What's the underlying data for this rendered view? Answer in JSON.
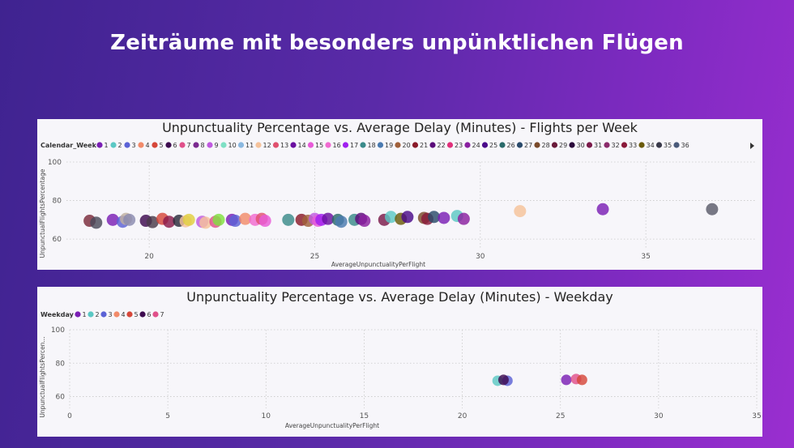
{
  "page": {
    "title": "Zeiträume mit besonders unpünktlichen Flügen"
  },
  "chart_data": [
    {
      "id": "week",
      "type": "scatter",
      "title": "Unpunctuality Percentage vs. Average Delay (Minutes) - Flights per Week",
      "legend_title": "Calendar_Week",
      "legend_more_icon": "chevron-right-icon",
      "xlabel": "AverageUnpunctualityPerFlight",
      "ylabel": "UnpunctualFlightsPercentage",
      "xlim": [
        17.5,
        38.3
      ],
      "ylim": [
        55,
        100
      ],
      "xticks": [
        20,
        25,
        30,
        35
      ],
      "yticks": [
        60,
        80,
        100
      ],
      "legend": [
        {
          "label": "1",
          "color": "#7a1fb4"
        },
        {
          "label": "2",
          "color": "#5bc8c4"
        },
        {
          "label": "3",
          "color": "#5b62d6"
        },
        {
          "label": "4",
          "color": "#f28b6a"
        },
        {
          "label": "5",
          "color": "#d6473a"
        },
        {
          "label": "6",
          "color": "#3d0a4f"
        },
        {
          "label": "7",
          "color": "#e0508a"
        },
        {
          "label": "8",
          "color": "#7b2a8f"
        },
        {
          "label": "9",
          "color": "#c05ae0"
        },
        {
          "label": "10",
          "color": "#7ee0c4"
        },
        {
          "label": "11",
          "color": "#8ab8e0"
        },
        {
          "label": "12",
          "color": "#f5c29a"
        },
        {
          "label": "13",
          "color": "#e0506e"
        },
        {
          "label": "14",
          "color": "#6a0fa0"
        },
        {
          "label": "15",
          "color": "#e85ad8"
        },
        {
          "label": "16",
          "color": "#f06ad0"
        },
        {
          "label": "17",
          "color": "#a020f0"
        },
        {
          "label": "18",
          "color": "#3a8a8a"
        },
        {
          "label": "19",
          "color": "#4a7ab0"
        },
        {
          "label": "20",
          "color": "#a0603a"
        },
        {
          "label": "21",
          "color": "#8a1a2a"
        },
        {
          "label": "22",
          "color": "#5a0a7a"
        },
        {
          "label": "23",
          "color": "#e0307a"
        },
        {
          "label": "24",
          "color": "#8a20a0"
        },
        {
          "label": "25",
          "color": "#4a0a8a"
        },
        {
          "label": "26",
          "color": "#2a6a6a"
        },
        {
          "label": "27",
          "color": "#2a4a6a"
        },
        {
          "label": "28",
          "color": "#7a4a2a"
        },
        {
          "label": "29",
          "color": "#6a1a3a"
        },
        {
          "label": "30",
          "color": "#2a0a3a"
        },
        {
          "label": "31",
          "color": "#7a1a4a"
        },
        {
          "label": "32",
          "color": "#8a2a6a"
        },
        {
          "label": "33",
          "color": "#8a1a3a"
        },
        {
          "label": "34",
          "color": "#6a5a0a"
        },
        {
          "label": "35",
          "color": "#3a3a4a"
        },
        {
          "label": "36",
          "color": "#4a5a7a"
        }
      ],
      "points": [
        {
          "x": 18.2,
          "y": 69.5,
          "c": "#7a2a3a"
        },
        {
          "x": 18.4,
          "y": 68.5,
          "c": "#4a4a5a"
        },
        {
          "x": 18.9,
          "y": 70.0,
          "c": "#7a1fb4"
        },
        {
          "x": 19.2,
          "y": 69.0,
          "c": "#5b62d6"
        },
        {
          "x": 19.3,
          "y": 70.5,
          "c": "#c0b0a0"
        },
        {
          "x": 19.4,
          "y": 70.0,
          "c": "#8a8ab0"
        },
        {
          "x": 19.9,
          "y": 69.5,
          "c": "#3d0a4f"
        },
        {
          "x": 20.1,
          "y": 68.8,
          "c": "#4a3a4a"
        },
        {
          "x": 20.4,
          "y": 70.5,
          "c": "#d6473a"
        },
        {
          "x": 20.6,
          "y": 69.0,
          "c": "#8a1a4a"
        },
        {
          "x": 20.9,
          "y": 69.5,
          "c": "#2a2a3a"
        },
        {
          "x": 21.1,
          "y": 69.2,
          "c": "#f5c29a"
        },
        {
          "x": 21.2,
          "y": 70.0,
          "c": "#e0d040"
        },
        {
          "x": 21.6,
          "y": 69.0,
          "c": "#c05ae0"
        },
        {
          "x": 21.7,
          "y": 68.5,
          "c": "#f5c29a"
        },
        {
          "x": 22.0,
          "y": 69.0,
          "c": "#e0508a"
        },
        {
          "x": 22.1,
          "y": 70.0,
          "c": "#80e040"
        },
        {
          "x": 22.5,
          "y": 70.0,
          "c": "#7a1fb4"
        },
        {
          "x": 22.6,
          "y": 69.5,
          "c": "#5b62d6"
        },
        {
          "x": 22.9,
          "y": 70.5,
          "c": "#f28b6a"
        },
        {
          "x": 23.2,
          "y": 70.0,
          "c": "#f06ad0"
        },
        {
          "x": 23.4,
          "y": 70.5,
          "c": "#e0506e"
        },
        {
          "x": 23.5,
          "y": 69.5,
          "c": "#e85ad8"
        },
        {
          "x": 24.2,
          "y": 70.0,
          "c": "#3a8a8a"
        },
        {
          "x": 24.6,
          "y": 70.0,
          "c": "#8a1a2a"
        },
        {
          "x": 24.8,
          "y": 69.5,
          "c": "#a0603a"
        },
        {
          "x": 25.0,
          "y": 70.5,
          "c": "#c05ae0"
        },
        {
          "x": 25.1,
          "y": 69.5,
          "c": "#e85ad8"
        },
        {
          "x": 25.2,
          "y": 70.0,
          "c": "#a020f0"
        },
        {
          "x": 25.4,
          "y": 70.5,
          "c": "#6a0fa0"
        },
        {
          "x": 25.7,
          "y": 70.0,
          "c": "#2a6a6a"
        },
        {
          "x": 25.8,
          "y": 69.0,
          "c": "#4a7ab0"
        },
        {
          "x": 26.2,
          "y": 70.0,
          "c": "#3a8a8a"
        },
        {
          "x": 26.4,
          "y": 70.5,
          "c": "#5a0a7a"
        },
        {
          "x": 26.5,
          "y": 69.5,
          "c": "#8a20a0"
        },
        {
          "x": 27.1,
          "y": 70.0,
          "c": "#7a1a4a"
        },
        {
          "x": 27.3,
          "y": 71.5,
          "c": "#5bc8c4"
        },
        {
          "x": 27.6,
          "y": 70.5,
          "c": "#6a5a0a"
        },
        {
          "x": 27.8,
          "y": 71.5,
          "c": "#4a0a8a"
        },
        {
          "x": 28.3,
          "y": 71.0,
          "c": "#7a4a2a"
        },
        {
          "x": 28.4,
          "y": 70.5,
          "c": "#8a1a3a"
        },
        {
          "x": 28.6,
          "y": 71.5,
          "c": "#2a4a6a"
        },
        {
          "x": 28.9,
          "y": 71.0,
          "c": "#7a1fb4"
        },
        {
          "x": 29.3,
          "y": 72.0,
          "c": "#5bc8c4"
        },
        {
          "x": 29.5,
          "y": 70.5,
          "c": "#8a20a0"
        },
        {
          "x": 31.2,
          "y": 74.5,
          "c": "#f5c29a"
        },
        {
          "x": 33.7,
          "y": 75.5,
          "c": "#7a1fb4"
        },
        {
          "x": 37.0,
          "y": 75.5,
          "c": "#5a5a6a"
        }
      ]
    },
    {
      "id": "day",
      "type": "scatter",
      "title": "Unpunctuality Percentage vs. Average Delay (Minutes) - Weekday",
      "legend_title": "Weekday",
      "xlabel": "AverageUnpunctualityPerFlight",
      "ylabel": "UnpunctualFlightsPercen...",
      "xlim": [
        0,
        35
      ],
      "ylim": [
        53,
        100
      ],
      "xticks": [
        0,
        5,
        10,
        15,
        20,
        25,
        30,
        35
      ],
      "yticks": [
        60,
        80,
        100
      ],
      "legend": [
        {
          "label": "1",
          "color": "#7a1fb4"
        },
        {
          "label": "2",
          "color": "#5bc8c4"
        },
        {
          "label": "3",
          "color": "#5b62d6"
        },
        {
          "label": "4",
          "color": "#f28b6a"
        },
        {
          "label": "5",
          "color": "#d6473a"
        },
        {
          "label": "6",
          "color": "#3d0a4f"
        },
        {
          "label": "7",
          "color": "#e0508a"
        }
      ],
      "points": [
        {
          "x": 21.8,
          "y": 69.5,
          "c": "#5bc8c4"
        },
        {
          "x": 22.3,
          "y": 69.5,
          "c": "#5b62d6"
        },
        {
          "x": 22.1,
          "y": 70.0,
          "c": "#3d0a4f"
        },
        {
          "x": 25.3,
          "y": 70.0,
          "c": "#7a1fb4"
        },
        {
          "x": 25.8,
          "y": 70.5,
          "c": "#e0508a"
        },
        {
          "x": 26.1,
          "y": 70.0,
          "c": "#d6473a"
        }
      ]
    }
  ]
}
